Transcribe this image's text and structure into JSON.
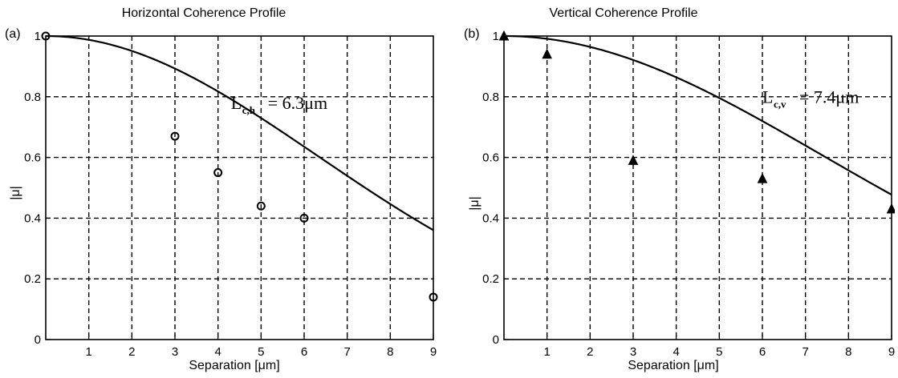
{
  "chart_data": [
    {
      "type": "scatter",
      "panel_label": "(a)",
      "title": "Horizontal Coherence Profile",
      "xlabel": "Separation [μm]",
      "ylabel": "|μ|",
      "xlim": [
        0,
        9
      ],
      "ylim": [
        0,
        1
      ],
      "x_ticks": [
        "1",
        "2",
        "3",
        "4",
        "5",
        "6",
        "7",
        "8",
        "9"
      ],
      "y_ticks": [
        "0",
        "0.2",
        "0.4",
        "0.6",
        "0.8",
        "1"
      ],
      "grid": true,
      "annotation": {
        "main": "L",
        "sub": "c,h",
        "value": "= 6.3μm",
        "x": 4.3,
        "y": 0.76
      },
      "marker": "circle",
      "points": {
        "x": [
          0,
          3,
          4,
          5,
          6,
          9
        ],
        "y": [
          1.0,
          0.67,
          0.55,
          0.44,
          0.4,
          0.14
        ]
      },
      "curve": {
        "coherence_length": 6.3
      }
    },
    {
      "type": "scatter",
      "panel_label": "(b)",
      "title": "Vertical Coherence Profile",
      "xlabel": "Separation [μm]",
      "ylabel": "|μ|",
      "xlim": [
        0,
        9
      ],
      "ylim": [
        0,
        1
      ],
      "x_ticks": [
        "1",
        "2",
        "3",
        "4",
        "5",
        "6",
        "7",
        "8",
        "9"
      ],
      "y_ticks": [
        "0",
        "0.2",
        "0.4",
        "0.6",
        "0.8",
        "1"
      ],
      "grid": true,
      "annotation": {
        "main": "L",
        "sub": "c,v",
        "value": "= 7.4μm",
        "x": 6.0,
        "y": 0.78
      },
      "marker": "triangle",
      "points": {
        "x": [
          0,
          1,
          3,
          6,
          9
        ],
        "y": [
          1.0,
          0.94,
          0.59,
          0.53,
          0.43
        ]
      },
      "curve": {
        "coherence_length": 7.4
      }
    }
  ]
}
